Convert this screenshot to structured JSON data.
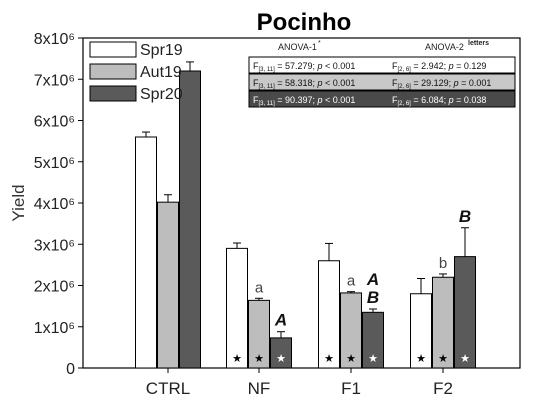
{
  "chart_data": {
    "type": "bar",
    "title": "Pocinho",
    "ylabel": "Yield",
    "xlabel": "",
    "ylim": [
      0,
      8000000
    ],
    "yticks": [
      {
        "value": 0,
        "label": "0"
      },
      {
        "value": 1000000,
        "label": "1x10⁶"
      },
      {
        "value": 2000000,
        "label": "2x10⁶"
      },
      {
        "value": 3000000,
        "label": "3x10⁶"
      },
      {
        "value": 4000000,
        "label": "4x10⁶"
      },
      {
        "value": 5000000,
        "label": "5x10⁶"
      },
      {
        "value": 6000000,
        "label": "6x10⁶"
      },
      {
        "value": 7000000,
        "label": "7x10⁶"
      },
      {
        "value": 8000000,
        "label": "8x10⁶"
      }
    ],
    "categories": [
      "CTRL",
      "NF",
      "F1",
      "F2"
    ],
    "series": [
      {
        "name": "Spr19",
        "color": "#ffffff",
        "star_color": "#000000",
        "values": [
          5600000,
          2900000,
          2600000,
          1800000
        ],
        "errors": [
          120000,
          130000,
          420000,
          370000
        ],
        "labels": [
          "",
          "",
          "",
          ""
        ],
        "stars": [
          false,
          true,
          true,
          true
        ]
      },
      {
        "name": "Aut19",
        "color": "#bdbdbd",
        "star_color": "#000000",
        "values": [
          4020000,
          1640000,
          1820000,
          2200000
        ],
        "errors": [
          180000,
          50000,
          30000,
          80000
        ],
        "labels": [
          "",
          "a",
          "a",
          "b"
        ],
        "stars": [
          false,
          true,
          true,
          true
        ]
      },
      {
        "name": "Spr20",
        "color": "#5a5a5a",
        "star_color": "#ffffff",
        "values": [
          7200000,
          730000,
          1350000,
          2700000
        ],
        "errors": [
          220000,
          150000,
          80000,
          700000
        ],
        "labels": [
          "",
          "A",
          "A\nB",
          "B"
        ],
        "stars": [
          false,
          true,
          true,
          true
        ]
      }
    ],
    "anova_headers": {
      "left_main": "ANOVA-1",
      "left_sup": "*",
      "right_main": "ANOVA-2",
      "right_sup": "letters"
    },
    "anova_rows": [
      {
        "left": {
          "f": "F",
          "sub": "[3, 11]",
          "rest": " = 57.279; ",
          "p": "p",
          "tail": " < 0.001"
        },
        "right": {
          "f": "F",
          "sub": "[2, 6]",
          "rest": " = 2.942; ",
          "p": "p",
          "tail": " = 0.129"
        }
      },
      {
        "left": {
          "f": "F",
          "sub": "[3, 11]",
          "rest": " = 58.318; ",
          "p": "p",
          "tail": " < 0.001"
        },
        "right": {
          "f": "F",
          "sub": "[2, 6]",
          "rest": " = 29.129; ",
          "p": "p",
          "tail": " = 0.001"
        }
      },
      {
        "left": {
          "f": "F",
          "sub": "[3, 11]",
          "rest": " = 90.397; ",
          "p": "p",
          "tail": " < 0.001"
        },
        "right": {
          "f": "F",
          "sub": "[2, 6]",
          "rest": " = 6.084; ",
          "p": "p",
          "tail": " = 0.038"
        }
      }
    ],
    "star_symbol": "★",
    "legend_position": "top-left",
    "grid": false
  }
}
